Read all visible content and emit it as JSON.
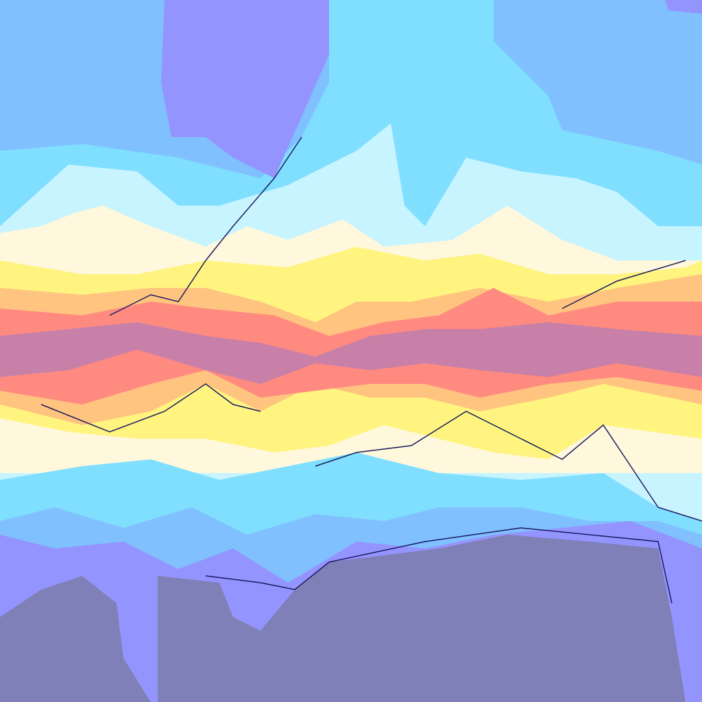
{
  "map": {
    "palette": {
      "polar_cold": "#8080b8",
      "very_cold": "#9494ff",
      "cold": "#80c0ff",
      "cool": "#80dfff",
      "mild_cool": "#c8f4ff",
      "mild": "#fff8dc",
      "warm": "#fff47f",
      "hot": "#ffc47f",
      "very_hot": "#ff8a80",
      "extreme": "#c880a8",
      "coastline": "#1a1a60"
    }
  }
}
